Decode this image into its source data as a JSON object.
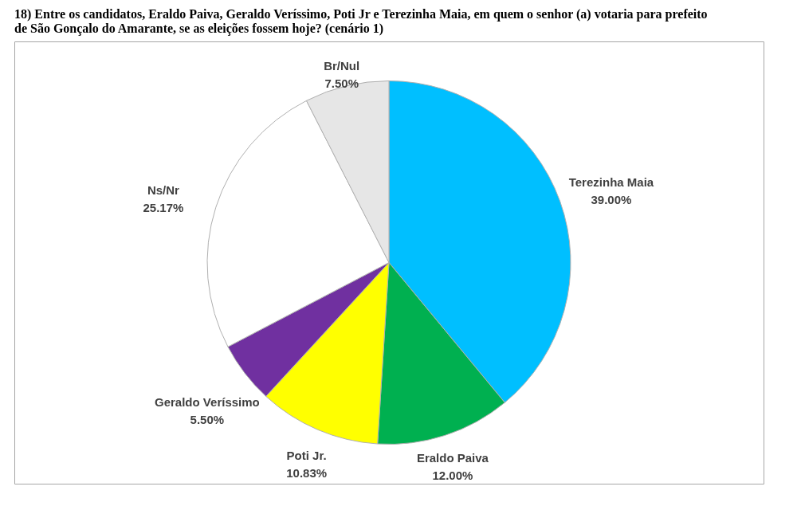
{
  "chart_data": {
    "type": "pie",
    "title": "18) Entre os candidatos, Eraldo Paiva, Geraldo Veríssimo, Poti Jr e Terezinha Maia, em quem o senhor (a) votaria para prefeito de São Gonçalo do Amarante, se as eleições fossem hoje? (cenário 1)",
    "categories": [
      "Terezinha Maia",
      "Eraldo Paiva",
      "Poti Jr.",
      "Geraldo Veríssimo",
      "Ns/Nr",
      "Br/Nul"
    ],
    "values": [
      39.0,
      12.0,
      10.83,
      5.5,
      25.17,
      7.5
    ],
    "value_labels": [
      "39.00%",
      "12.00%",
      "10.83%",
      "5.50%",
      "25.17%",
      "7.50%"
    ],
    "colors": [
      "#00bfff",
      "#00b050",
      "#ffff00",
      "#7030a0",
      "#ffffff",
      "#e6e6e6"
    ],
    "legend": false
  }
}
